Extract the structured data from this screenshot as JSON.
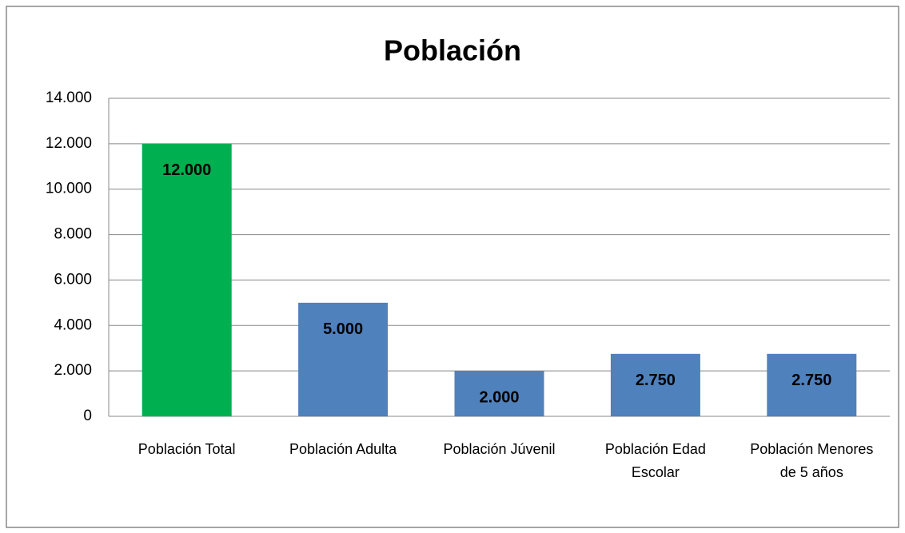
{
  "chart_data": {
    "type": "bar",
    "title": "Población",
    "categories": [
      "Población Total",
      "Población Adulta",
      "Población Júvenil",
      "Población Edad Escolar",
      "Población Menores de 5 años"
    ],
    "values": [
      12000,
      5000,
      2000,
      2750,
      2750
    ],
    "value_labels": [
      "12.000",
      "5.000",
      "2.000",
      "2.750",
      "2.750"
    ],
    "colors": [
      "#00b050",
      "#4f81bd",
      "#4f81bd",
      "#4f81bd",
      "#4f81bd"
    ],
    "ylim": [
      0,
      14000
    ],
    "yticks": [
      0,
      {
        "value": 2000,
        "label": "2.000"
      },
      {
        "value": 4000,
        "label": "4.000"
      },
      {
        "value": 6000,
        "label": "6.000"
      },
      {
        "value": 8000,
        "label": "8.000"
      },
      {
        "value": 10000,
        "label": "10.000"
      },
      {
        "value": 12000,
        "label": "12.000"
      },
      {
        "value": 14000,
        "label": "14.000"
      }
    ],
    "grid": true
  }
}
